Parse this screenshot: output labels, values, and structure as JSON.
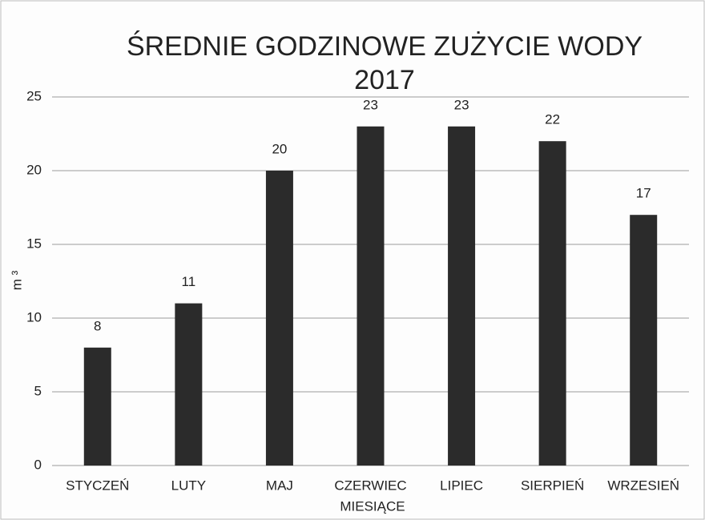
{
  "chart_data": {
    "type": "bar",
    "title": "ŚREDNIE GODZINOWE ZUŻYCIE WODY 2017",
    "x_label": "MIESIĄCE",
    "y_label": "m ³",
    "categories": [
      "STYCZEŃ",
      "LUTY",
      "MAJ",
      "CZERWIEC",
      "LIPIEC",
      "SIERPIEŃ",
      "WRZESIEŃ"
    ],
    "values": [
      8,
      11,
      20,
      23,
      23,
      22,
      17
    ],
    "color": "#2b2b2b",
    "ylim": [
      0,
      25
    ],
    "yticks": [
      0,
      5,
      10,
      15,
      20,
      25
    ],
    "grid": true
  }
}
